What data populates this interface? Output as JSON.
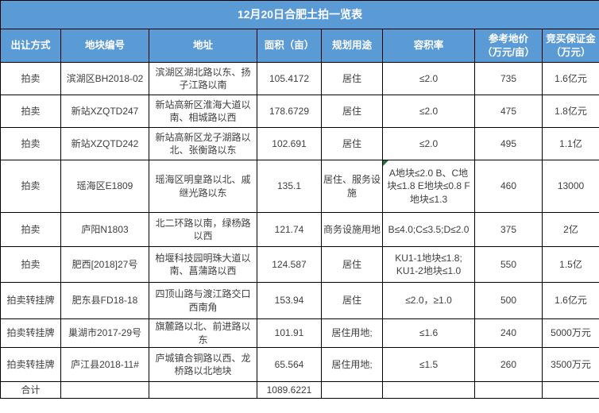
{
  "title": "12月20日合肥土拍一览表",
  "colors": {
    "header_bg": "#5b9bd5",
    "header_text": "#ffffff",
    "body_text": "#3f3f3f",
    "border": "#000000",
    "note_marker": "#1e7145"
  },
  "table": {
    "column_keys": [
      "method",
      "code",
      "address",
      "area",
      "use",
      "far",
      "price",
      "deposit"
    ],
    "headers": [
      "出让方式",
      "地块编号",
      "地址",
      "面积（亩）",
      "规划用途",
      "容积率",
      "参考地价\n（万元/亩）",
      "竞买保证金\n（万元）"
    ],
    "rows": [
      {
        "method": "拍卖",
        "code": "滨湖区BH2018-02",
        "address": "滨湖区湖北路以东、扬子江路以南",
        "area": "105.4172",
        "use": "居住",
        "far": "≤2.0",
        "price": "735",
        "deposit": "1.6亿元",
        "has_note_marker": false
      },
      {
        "method": "拍卖",
        "code": "新站XZQTD247",
        "address": "新站高新区淮海大道以南、相城路以西",
        "area": "178.6729",
        "use": "居住",
        "far": "≤2.0",
        "price": "475",
        "deposit": "1.8亿元",
        "has_note_marker": false
      },
      {
        "method": "拍卖",
        "code": "新站XZQTD242",
        "address": "新站高新区龙子湖路以北、张衡路以东",
        "area": "102.691",
        "use": "居住",
        "far": "≤2.0",
        "price": "495",
        "deposit": "1.1亿",
        "has_note_marker": false
      },
      {
        "method": "拍卖",
        "code": "瑶海区E1809",
        "address": "瑶海区明皇路以北、戚继光路以东",
        "area": "135.1",
        "use": "居住、服务设施",
        "far": "A地块≤2.0 B、C地块≤1.8 E地块≤0.8 F地块≤1.3",
        "price": "460",
        "deposit": "13000",
        "has_note_marker": true
      },
      {
        "method": "拍卖",
        "code": "庐阳N1803",
        "address": "北二环路以南，绿杨路以西",
        "area": "121.74",
        "use": "商务设施用地",
        "far": "B≤4.0;C≤3.5;D≤2.0",
        "price": "375",
        "deposit": "2亿",
        "has_note_marker": false
      },
      {
        "method": "拍卖",
        "code": "肥西[2018]27号",
        "address": "柏堰科技园明珠大道以南、菖蒲路以西",
        "area": "124.587",
        "use": "居住",
        "far": "KU1-1地块≤1.8; KU1-2地块≤1.0",
        "price": "550",
        "deposit": "1.5亿",
        "has_note_marker": false
      },
      {
        "method": "拍卖转挂牌",
        "code": "肥东县FD18-18",
        "address": "四顶山路与渡江路交口西南角",
        "area": "153.94",
        "use": "居住",
        "far": "≤2.0，≥1.0",
        "price": "500",
        "deposit": "1.6亿元",
        "has_note_marker": false
      },
      {
        "method": "拍卖转挂牌",
        "code": "巢湖市2017-29号",
        "address": "旗麓路以北、前进路以东",
        "area": "101.91",
        "use": "居住用地;",
        "far": "≤1.6",
        "price": "240",
        "deposit": "5000万元",
        "has_note_marker": false
      },
      {
        "method": "拍卖转挂牌",
        "code": "庐江县2018-11#",
        "address": "庐城镇合铜路以西、龙桥路以北地块",
        "area": "65.564",
        "use": "居住用地;",
        "far": "≤1.5",
        "price": "260",
        "deposit": "3500万元",
        "has_note_marker": false
      }
    ],
    "total_row": {
      "label": "合计",
      "area": "1089.6221"
    }
  }
}
